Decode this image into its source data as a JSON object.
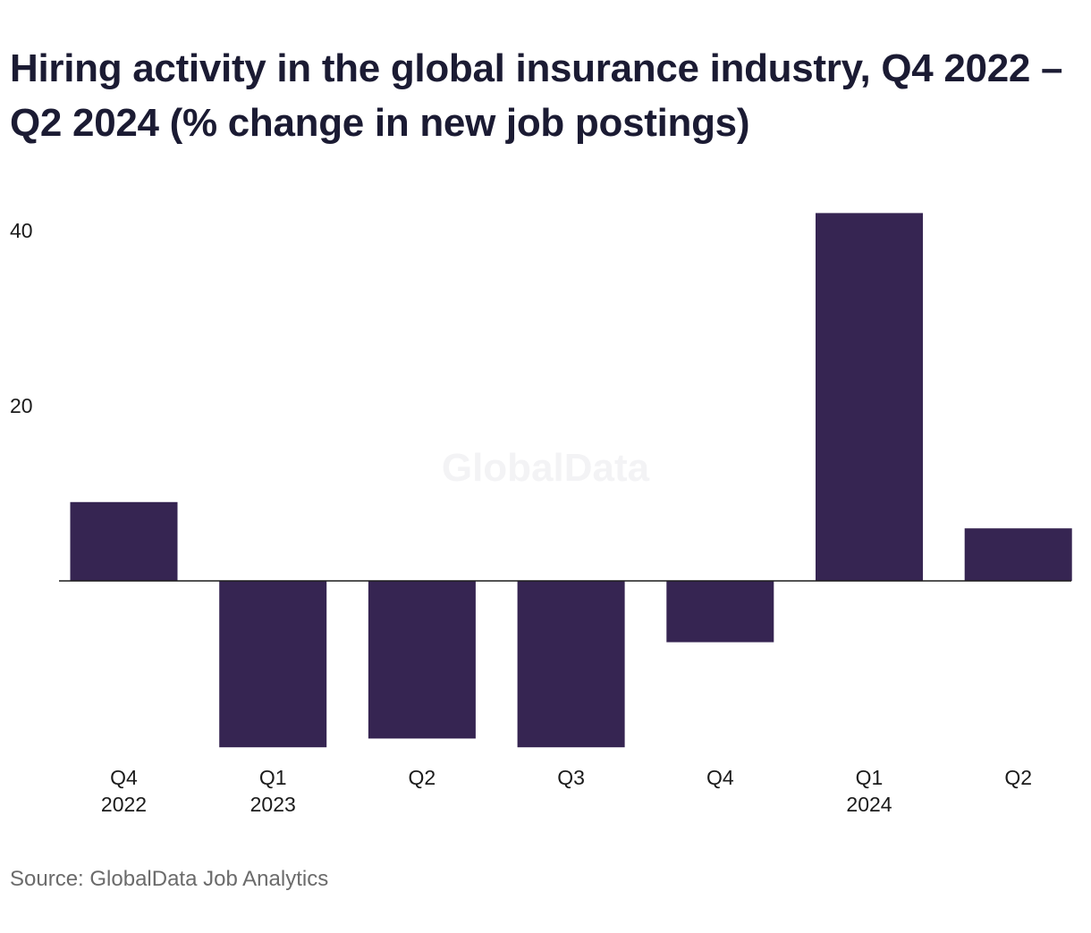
{
  "chart_data": {
    "type": "bar",
    "title": "Hiring activity in the global insurance industry, Q4 2022 – Q2 2024 (% change in new job postings)",
    "categories": [
      [
        "Q4",
        "2022"
      ],
      [
        "Q1",
        "2023"
      ],
      [
        "Q2"
      ],
      [
        "Q3"
      ],
      [
        "Q4"
      ],
      [
        "Q1",
        "2024"
      ],
      [
        "Q2"
      ]
    ],
    "values": [
      9,
      -19,
      -18,
      -19,
      -7,
      42,
      6
    ],
    "y_ticks": [
      20,
      40
    ],
    "ylim": [
      -22,
      44
    ],
    "xlabel": "",
    "ylabel": "",
    "grid": false,
    "bar_color": "#362552",
    "watermark": "GlobalData"
  },
  "source": "Source: GlobalData Job Analytics"
}
